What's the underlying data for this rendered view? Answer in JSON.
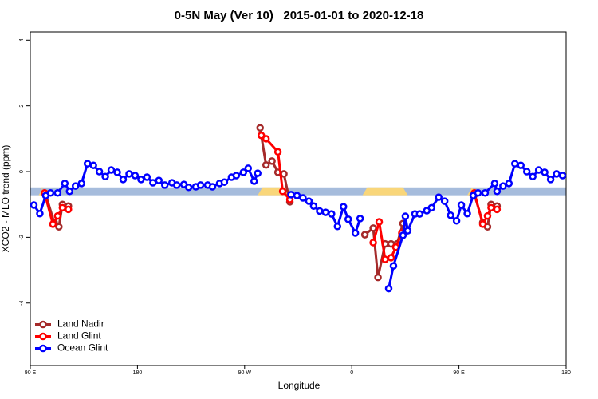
{
  "chart_data": {
    "type": "line",
    "title": "0-5N May (Ver 10)   2015-01-01 to 2020-12-18",
    "xlabel": "Longitude",
    "ylabel": "XCO2 - MLO trend (ppm)",
    "xlim": [
      -270,
      180
    ],
    "xticks": [
      {
        "value": -270,
        "label": "90 E"
      },
      {
        "value": -180,
        "label": "180"
      },
      {
        "value": -90,
        "label": "90 W"
      },
      0,
      {
        "value": 90,
        "label": "90 E"
      },
      180
    ],
    "ylim": [
      -5.9,
      4.25
    ],
    "yticks": [
      -4,
      -2,
      0,
      2,
      4
    ],
    "legend": "bottom-left",
    "band": {
      "ylim": [
        -0.48,
        -0.72
      ],
      "color": "#a6bcdc",
      "land_color": "#f9d67a",
      "land_ranges": [
        [
          -263,
          -257
        ],
        [
          -79,
          -51
        ],
        [
          9,
          47
        ],
        [
          97,
          105
        ]
      ]
    },
    "series": [
      {
        "name": "Land Nadir",
        "color": "#a52a2a",
        "x": [
          -257,
          -250,
          -246,
          -243,
          -238,
          null,
          -77,
          -72,
          -67,
          -62,
          -57,
          -52,
          null,
          11,
          18,
          22,
          28,
          33,
          38,
          43,
          null,
          103,
          110,
          114,
          117,
          122
        ],
        "values": [
          -0.7,
          -1.55,
          -1.68,
          -1.0,
          -1.05,
          null,
          1.33,
          0.2,
          0.32,
          -0.02,
          -0.07,
          -0.92,
          null,
          -1.92,
          -1.72,
          -3.22,
          -2.2,
          -2.2,
          -2.2,
          -1.58,
          null,
          -0.7,
          -1.55,
          -1.68,
          -1.0,
          -1.05
        ]
      },
      {
        "name": "Land Glint",
        "color": "#ff0000",
        "x": [
          -258,
          -251,
          -247,
          -243,
          -238,
          null,
          -76,
          -72,
          -62,
          -58,
          -52,
          null,
          18,
          23,
          28,
          33,
          37,
          42,
          null,
          103,
          110,
          114,
          117,
          122
        ],
        "values": [
          -0.65,
          -1.6,
          -1.35,
          -1.1,
          -1.15,
          null,
          1.1,
          1.0,
          0.6,
          -0.6,
          -0.85,
          null,
          -2.16,
          -1.53,
          -2.67,
          -2.62,
          -2.3,
          -1.87,
          null,
          -0.65,
          -1.6,
          -1.35,
          -1.1,
          -1.15
        ]
      },
      {
        "name": "Ocean Glint",
        "color": "#0000ff",
        "x": [
          -267,
          -262,
          -257,
          -253,
          -247,
          -241,
          -237,
          -232,
          -227,
          -222,
          -217,
          -212,
          -207,
          -202,
          -197,
          -192,
          -187,
          -182,
          -177,
          -172,
          -167,
          -162,
          -157,
          -151,
          -147,
          -141,
          -137,
          -131,
          -127,
          -121,
          -117,
          -111,
          -107,
          -101,
          -97,
          -91,
          -87,
          -82,
          -79,
          null,
          -51,
          -46,
          -41,
          -36,
          -32,
          -27,
          -22,
          -17,
          -12,
          -7,
          -3,
          3,
          7,
          null,
          31,
          35,
          43,
          45,
          47,
          53,
          57,
          63,
          67,
          73,
          78,
          83,
          88,
          92,
          97,
          102,
          106,
          112,
          120,
          122,
          127,
          132,
          137,
          142,
          147,
          152,
          157,
          162,
          167,
          172,
          177
        ],
        "values": [
          -1.02,
          -1.28,
          -0.73,
          -0.65,
          -0.65,
          -0.36,
          -0.6,
          -0.44,
          -0.36,
          0.24,
          0.19,
          0,
          -0.15,
          0.05,
          -0.02,
          -0.24,
          -0.07,
          -0.12,
          -0.24,
          -0.17,
          -0.34,
          -0.27,
          -0.41,
          -0.34,
          -0.41,
          -0.39,
          -0.48,
          -0.46,
          -0.41,
          -0.41,
          -0.46,
          -0.36,
          -0.32,
          -0.17,
          -0.12,
          -0.02,
          0.1,
          -0.29,
          -0.05,
          null,
          -0.7,
          -0.73,
          -0.8,
          -0.9,
          -1.05,
          -1.2,
          -1.24,
          -1.29,
          -1.67,
          -1.07,
          -1.45,
          -1.87,
          -1.43,
          null,
          -3.56,
          -2.87,
          -1.94,
          -1.36,
          -1.8,
          -1.29,
          -1.29,
          -1.19,
          -1.1,
          -0.78,
          -0.9,
          -1.33,
          -1.5,
          -1.02,
          -1.28,
          -0.73,
          -0.65,
          -0.65,
          -0.36,
          -0.6,
          -0.44,
          -0.36,
          0.24,
          0.19,
          0,
          -0.15,
          0.05,
          -0.02,
          -0.24,
          -0.07,
          -0.12
        ]
      }
    ]
  }
}
